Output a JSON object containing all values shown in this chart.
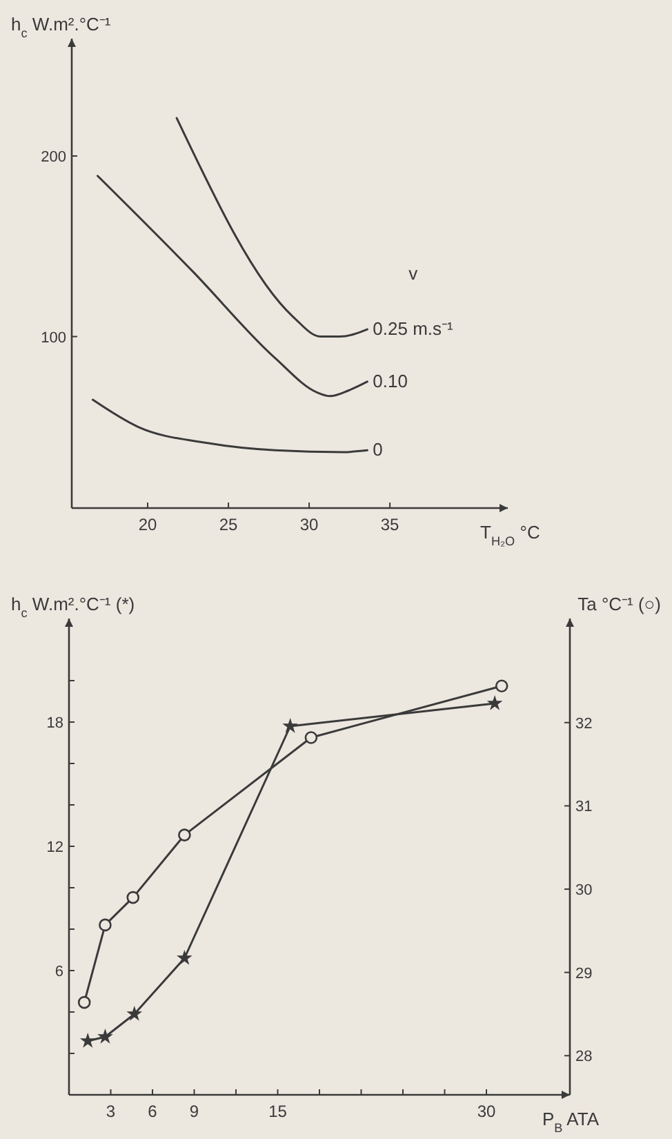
{
  "chart_data": [
    {
      "type": "line",
      "ylabel": "h$_{c}$ W.m².°C⁻¹",
      "xlabel": "T$_{H₂O}$ °C",
      "legend_title": "v",
      "legend": "right",
      "xlim": [
        15.3,
        42.3
      ],
      "ylim": [
        5,
        265
      ],
      "xticks": [
        20,
        25,
        30,
        35
      ],
      "yticks": [
        100,
        200
      ],
      "series": [
        {
          "name": "0.25 m.s⁻¹",
          "color": "#3a3a3a",
          "x": [
            21.8,
            29.0,
            30.7,
            31.9,
            33.6
          ],
          "values": [
            221,
            111,
            100,
            100,
            104
          ]
        },
        {
          "name": "0.10",
          "color": "#3a3a3a",
          "x": [
            16.9,
            22.8,
            27.9,
            30.5,
            31.3,
            32.4,
            33.6
          ],
          "values": [
            189,
            136,
            88,
            69,
            67,
            70,
            75
          ]
        },
        {
          "name": "0",
          "color": "#3a3a3a",
          "x": [
            16.6,
            19.4,
            23.7,
            27.9,
            32.1,
            33.6
          ],
          "values": [
            65,
            50,
            41,
            37,
            36,
            37
          ]
        }
      ]
    },
    {
      "type": "line",
      "ylabel": "h$_{c}$ W.m².°C⁻¹ (*)",
      "y2label": "Ta °C⁻¹ (○)",
      "xlabel": "P$_{B}$ ATA",
      "xlim": [
        0,
        36
      ],
      "ylim": [
        0,
        23
      ],
      "y2lim": [
        27.53,
        33.25
      ],
      "xticks": [
        3,
        6,
        9,
        {
          "value": 12,
          "label": null
        },
        15,
        {
          "value": 18,
          "label": null
        },
        {
          "value": 21,
          "label": null
        },
        {
          "value": 24,
          "label": null
        },
        {
          "value": 27,
          "label": null
        },
        30
      ],
      "yticks": [
        {
          "value": 2,
          "label": null
        },
        {
          "value": 4,
          "label": null
        },
        6,
        {
          "value": 8,
          "label": null
        },
        {
          "value": 10,
          "label": null
        },
        12,
        {
          "value": 14,
          "label": null
        },
        {
          "value": 16,
          "label": null
        },
        18,
        {
          "value": 20,
          "label": null
        }
      ],
      "y2ticks": [
        28,
        29,
        30,
        31,
        32
      ],
      "series": [
        {
          "color": "#3a3a3a",
          "marker": "star",
          "x": [
            1.35,
            2.6,
            4.7,
            8.3,
            15.9,
            30.6
          ],
          "values": [
            2.6,
            2.8,
            3.9,
            6.6,
            17.8,
            18.9
          ]
        },
        {
          "color": "#3a3a3a",
          "marker": "circle",
          "axis": "y2",
          "x": [
            1.1,
            2.6,
            4.6,
            8.3,
            17.4,
            31.1
          ],
          "values": [
            28.64,
            29.57,
            29.9,
            30.65,
            31.82,
            32.44
          ]
        }
      ]
    }
  ]
}
